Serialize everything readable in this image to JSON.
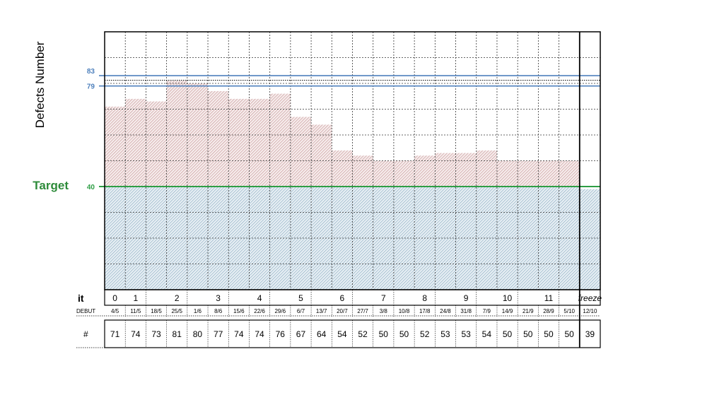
{
  "chart_data": {
    "type": "bar",
    "ylabel": "Defects Number",
    "ylim": [
      0,
      100
    ],
    "grid": true,
    "categories": [
      "4/5",
      "11/5",
      "18/5",
      "25/5",
      "1/6",
      "8/6",
      "15/6",
      "22/6",
      "29/6",
      "6/7",
      "13/7",
      "20/7",
      "27/7",
      "3/8",
      "10/8",
      "17/8",
      "24/8",
      "31/8",
      "7/9",
      "14/9",
      "21/9",
      "28/9",
      "5/10",
      "12/10"
    ],
    "values": [
      71,
      74,
      73,
      81,
      80,
      77,
      74,
      74,
      76,
      67,
      64,
      54,
      52,
      50,
      50,
      52,
      53,
      53,
      54,
      50,
      50,
      50,
      50,
      39
    ],
    "reference_lines": [
      {
        "label": "83",
        "value": 83,
        "color": "#4f81bd"
      },
      {
        "label": "79",
        "value": 79,
        "color": "#4f81bd"
      },
      {
        "label": "40",
        "value": 40,
        "color": "#2e9e45",
        "name": "Target"
      }
    ],
    "target_label": "Target",
    "iterations": [
      {
        "label": "0",
        "at": 0.5
      },
      {
        "label": "1",
        "at": 1.5
      },
      {
        "label": "2",
        "at": 3.5
      },
      {
        "label": "3",
        "at": 5.5
      },
      {
        "label": "4",
        "at": 7.5
      },
      {
        "label": "5",
        "at": 9.5
      },
      {
        "label": "6",
        "at": 11.5
      },
      {
        "label": "7",
        "at": 13.5
      },
      {
        "label": "8",
        "at": 15.5
      },
      {
        "label": "9",
        "at": 17.5
      },
      {
        "label": "10",
        "at": 19.5
      },
      {
        "label": "11",
        "at": 21.5
      },
      {
        "label": "freeze",
        "at": 23.5
      }
    ],
    "row_labels": {
      "it": "it",
      "debut": "DEBUT",
      "count": "#"
    },
    "colors": {
      "above_target": "#c99a9a",
      "below_target": "#8fb0c4",
      "blue_line": "#4f81bd",
      "green_line": "#2e9e45"
    }
  }
}
